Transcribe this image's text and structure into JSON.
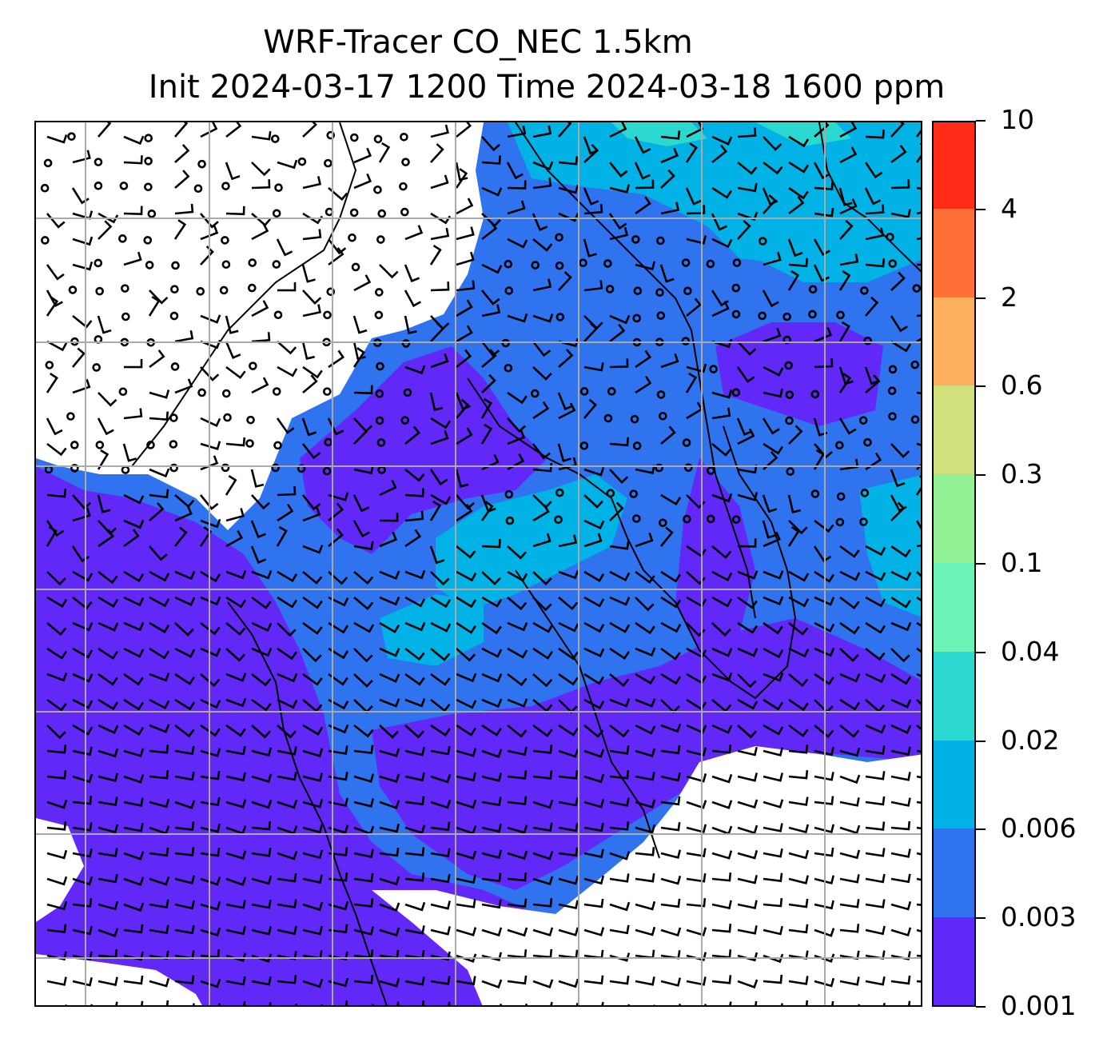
{
  "title": {
    "line1": "WRF-Tracer CO_NEC 1.5km",
    "line2": "Init 2024-03-17 1200 Time 2024-03-18 1600 ppm"
  },
  "map": {
    "variable": "CO_NEC",
    "units": "ppm",
    "resolution": "1.5km",
    "gridlines": true,
    "wind_barbs": true
  },
  "colorbar": {
    "levels": [
      "0.001",
      "0.003",
      "0.006",
      "0.02",
      "0.04",
      "0.1",
      "0.3",
      "0.6",
      "2",
      "4",
      "10"
    ],
    "colors": [
      "#6128f7",
      "#2f73ef",
      "#00b2e5",
      "#2bd9d0",
      "#6cf3b8",
      "#93f394",
      "#cfe07d",
      "#fcb05f",
      "#ff7039",
      "#ff2b16"
    ]
  }
}
